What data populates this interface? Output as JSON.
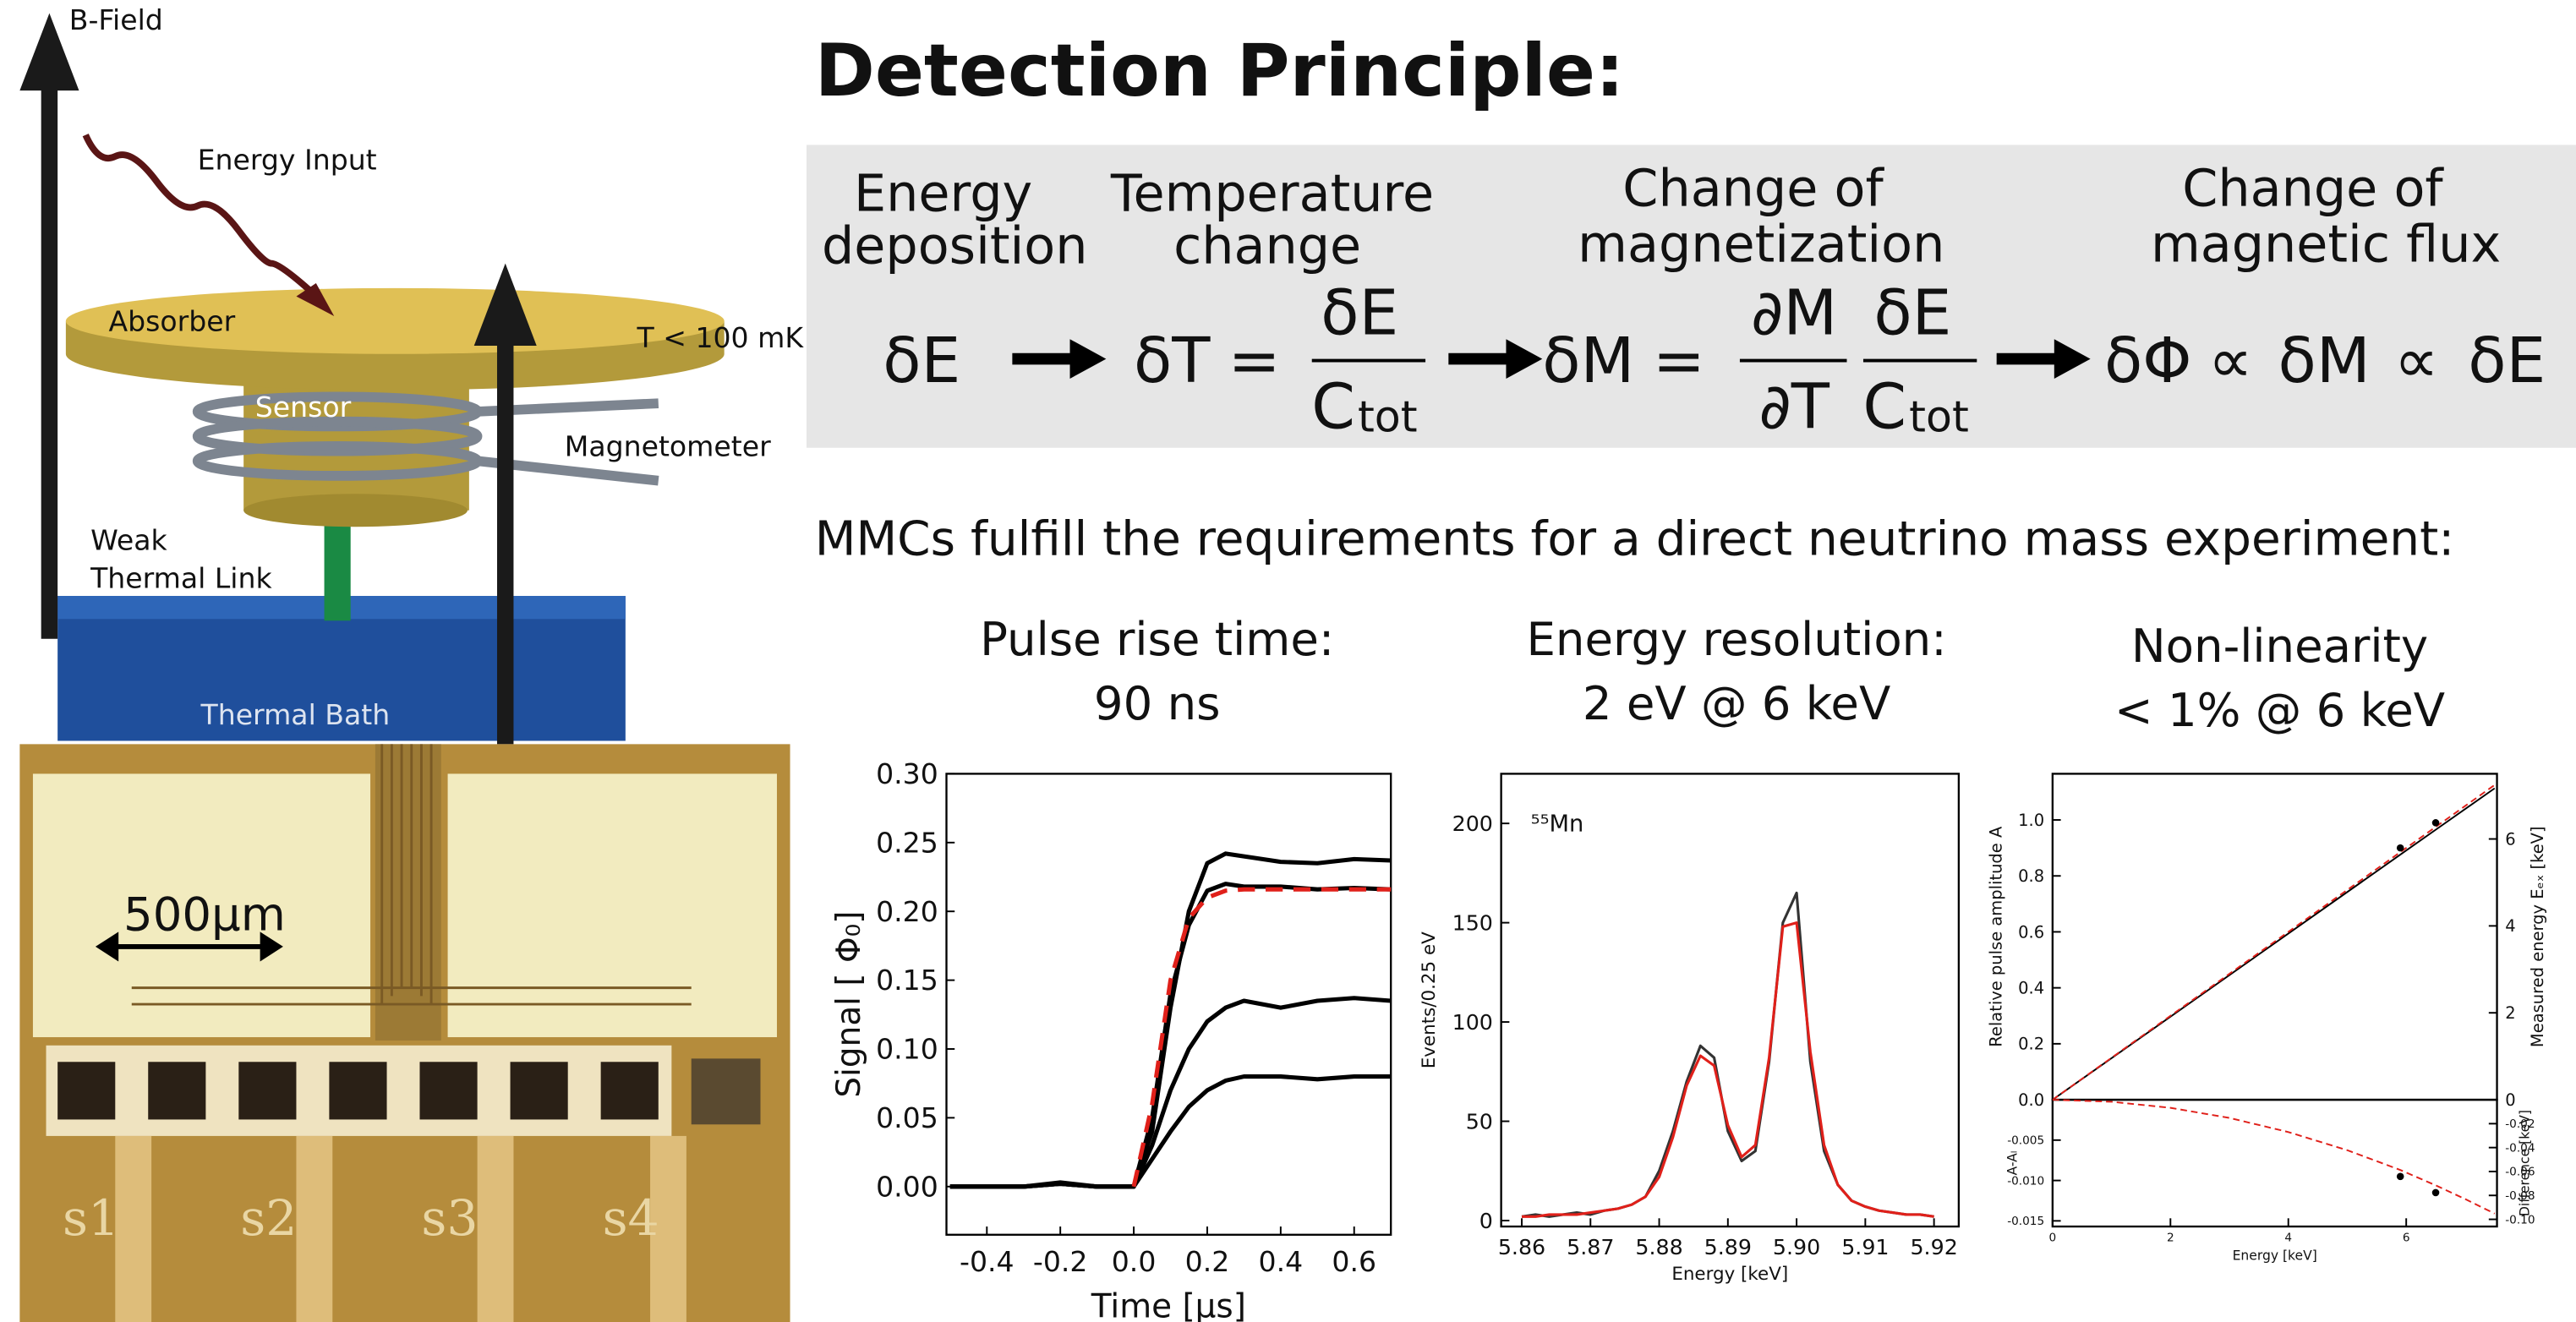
{
  "diagram": {
    "b_field": "B-Field",
    "energy_input": "Energy Input",
    "absorber": "Absorber",
    "temperature": "T < 100 mK",
    "sensor": "Sensor",
    "magnetometer": "Magnetometer",
    "weak_link": [
      "Weak",
      "Thermal Link"
    ],
    "thermal_bath": "Thermal Bath"
  },
  "photo": {
    "scale": "500µm",
    "labels": [
      "s1",
      "s2",
      "s3",
      "s4"
    ]
  },
  "principle": {
    "title": "Detection Principle:",
    "steps": [
      [
        "Energy",
        "deposition"
      ],
      [
        "Temperature",
        "change"
      ],
      [
        "Change of",
        "magnetization"
      ],
      [
        "Change of",
        "magnetic flux"
      ]
    ],
    "formula": [
      "δE",
      "δT",
      "=",
      "δE",
      "C",
      "tot",
      "δM",
      "=",
      "∂M",
      "∂T",
      "δE",
      "C",
      "tot",
      "δΦ",
      "∝",
      "δM",
      "∝",
      "δE"
    ]
  },
  "requirements": {
    "text": "MMCs fulfill the requirements for a direct neutrino mass experiment:",
    "items": [
      [
        "Pulse rise time:",
        "90 ns"
      ],
      [
        "Energy resolution:",
        "2 eV @ 6 keV"
      ],
      [
        "Non-linearity",
        "< 1% @ 6 keV"
      ]
    ]
  },
  "chart_data": [
    {
      "type": "line",
      "xlabel": "Time [µs]",
      "ylabel": "Signal [ Φ₀]",
      "x": [
        -0.5,
        -0.4,
        -0.3,
        -0.2,
        -0.1,
        0,
        0.05,
        0.1,
        0.15,
        0.2,
        0.25,
        0.3,
        0.4,
        0.5,
        0.6,
        0.7
      ],
      "series": [
        {
          "color": "#000000",
          "values": [
            0,
            0,
            0,
            0.003,
            0,
            0,
            0.04,
            0.13,
            0.2,
            0.235,
            0.242,
            0.24,
            0.236,
            0.235,
            0.238,
            0.237
          ]
        },
        {
          "color": "#000000",
          "values": [
            0,
            0,
            0,
            0.002,
            0,
            0,
            0.05,
            0.14,
            0.19,
            0.215,
            0.22,
            0.218,
            0.218,
            0.216,
            0.217,
            0.216
          ]
        },
        {
          "color": "#000000",
          "values": [
            0,
            0,
            0,
            0.002,
            0,
            0,
            0.03,
            0.07,
            0.1,
            0.12,
            0.13,
            0.135,
            0.13,
            0.135,
            0.137,
            0.135
          ]
        },
        {
          "color": "#000000",
          "values": [
            0,
            0,
            0,
            0.002,
            0,
            0,
            0.02,
            0.04,
            0.058,
            0.07,
            0.077,
            0.08,
            0.08,
            0.078,
            0.08,
            0.08
          ]
        },
        {
          "color": "#e0201a",
          "dash": true,
          "values": [
            null,
            null,
            null,
            null,
            null,
            0,
            0.06,
            0.15,
            0.195,
            0.21,
            0.215,
            0.216,
            0.216,
            0.216,
            0.216,
            0.216
          ]
        }
      ],
      "xlim": [
        -0.51,
        0.7
      ],
      "ylim": [
        -0.035,
        0.3
      ],
      "xticks": [
        -0.4,
        -0.2,
        {
          "value": 0,
          "label": "0.0"
        },
        0.2,
        0.4,
        0.6
      ],
      "yticks": [
        {
          "value": 0,
          "label": "0.00"
        },
        {
          "value": 0.05,
          "label": "0.05"
        },
        {
          "value": 0.1,
          "label": "0.10"
        },
        {
          "value": 0.15,
          "label": "0.15"
        },
        {
          "value": 0.2,
          "label": "0.20"
        },
        {
          "value": 0.25,
          "label": "0.25"
        },
        {
          "value": 0.3,
          "label": "0.30"
        }
      ]
    },
    {
      "type": "line",
      "xlabel": "Energy [keV]",
      "ylabel": "Events/0.25 eV",
      "annotation": "⁵⁵Mn",
      "x": [
        5.86,
        5.862,
        5.864,
        5.866,
        5.868,
        5.87,
        5.872,
        5.874,
        5.876,
        5.878,
        5.88,
        5.882,
        5.884,
        5.886,
        5.888,
        5.89,
        5.892,
        5.894,
        5.896,
        5.898,
        5.9,
        5.902,
        5.904,
        5.906,
        5.908,
        5.91,
        5.912,
        5.914,
        5.916,
        5.918,
        5.92
      ],
      "series": [
        {
          "color": "#333333",
          "values": [
            2,
            3,
            2,
            3,
            4,
            3,
            5,
            6,
            8,
            12,
            25,
            45,
            70,
            88,
            82,
            45,
            30,
            35,
            80,
            150,
            165,
            80,
            35,
            18,
            10,
            7,
            5,
            4,
            3,
            3,
            2
          ]
        },
        {
          "color": "#e0201a",
          "values": [
            2,
            2,
            3,
            3,
            3,
            4,
            5,
            6,
            8,
            12,
            22,
            42,
            68,
            83,
            78,
            48,
            32,
            38,
            82,
            148,
            150,
            85,
            38,
            18,
            10,
            7,
            5,
            4,
            3,
            3,
            2
          ]
        }
      ],
      "xlim": [
        5.857,
        5.9236
      ],
      "ylim": [
        -3,
        225
      ],
      "xticks": [
        5.86,
        5.87,
        5.88,
        5.89,
        {
          "value": 5.9,
          "label": "5.90"
        },
        5.91,
        5.92
      ],
      "yticks": [
        0,
        50,
        100,
        150,
        200
      ]
    },
    {
      "type": "line",
      "ylabel": "Relative pulse amplitude A",
      "y2label": "Measured energy Eₑₓ [keV]",
      "x": [
        0,
        5.9,
        6.5,
        7.5
      ],
      "series": [
        {
          "color": "#000000",
          "values": [
            0,
            0.876,
            0.965,
            1.113
          ]
        },
        {
          "color": "#e0201a",
          "dash": true,
          "values": [
            0,
            0.885,
            0.975,
            1.125
          ]
        },
        {
          "color": "#000000",
          "marker": true,
          "values": [
            null,
            0.9,
            0.99,
            null
          ]
        }
      ],
      "xlim": [
        0,
        7.54
      ],
      "ylim": [
        0,
        1.165
      ],
      "y2lim": [
        0,
        7.5
      ],
      "yticks": [
        {
          "value": 0,
          "label": "0.0"
        },
        0.2,
        0.4,
        0.6,
        0.8,
        {
          "value": 1,
          "label": "1.0"
        }
      ],
      "y2ticks": [
        0,
        2,
        4,
        6
      ]
    },
    {
      "type": "line",
      "xlabel": "Energy [keV]",
      "ylabel": "A-Aₗ",
      "y2label": "Difference [keV]",
      "x": [
        0,
        1,
        2,
        3,
        4,
        5,
        5.9,
        6.5,
        7,
        7.5
      ],
      "series": [
        {
          "color": "#e0201a",
          "dash": true,
          "values": [
            0,
            -0.00025,
            -0.001,
            -0.00225,
            -0.004,
            -0.00625,
            -0.0087,
            -0.0106,
            -0.0123,
            -0.0141
          ]
        },
        {
          "color": "#000000",
          "marker": true,
          "values": [
            null,
            null,
            null,
            null,
            null,
            null,
            -0.0095,
            -0.0115,
            null,
            null
          ]
        }
      ],
      "xlim": [
        0,
        7.54
      ],
      "ylim": [
        -0.0157,
        0
      ],
      "y2lim": [
        -0.106,
        0
      ],
      "xticks": [
        0,
        2,
        4,
        6
      ],
      "yticks": [
        -0.005,
        {
          "value": -0.01,
          "label": "-0.010"
        },
        -0.015
      ],
      "y2ticks": [
        -0.02,
        -0.04,
        -0.06,
        -0.08,
        {
          "value": -0.1,
          "label": "-0.10"
        }
      ]
    }
  ]
}
